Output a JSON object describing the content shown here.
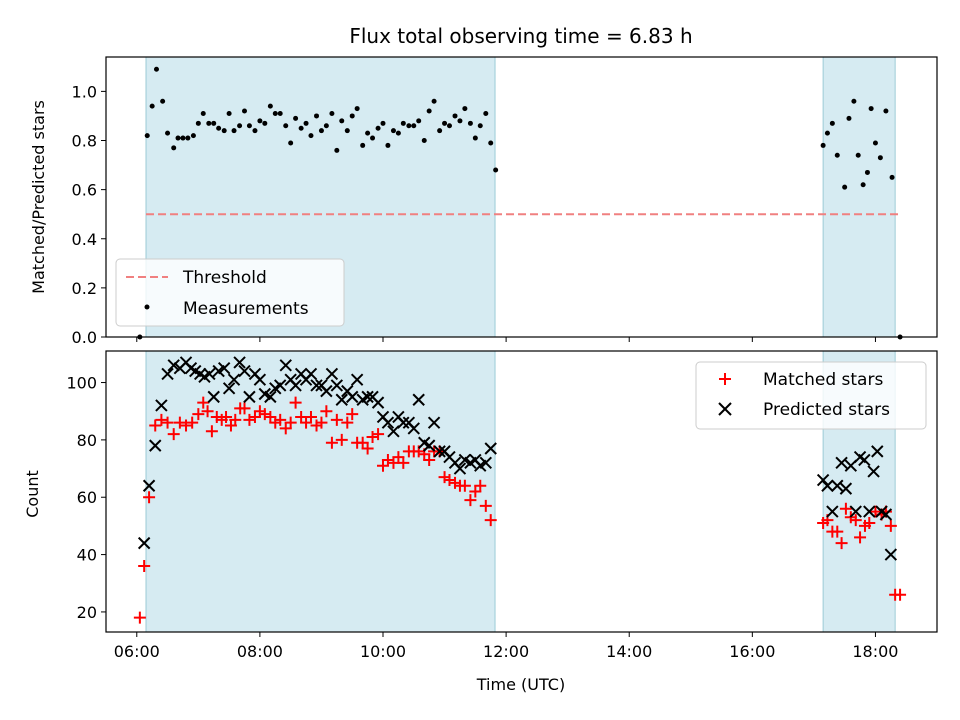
{
  "chart_data": [
    {
      "type": "scatter",
      "title": "Flux total observing time = 6.83 h",
      "ylabel": "Matched/Predicted stars",
      "ylim": [
        0,
        1.14
      ],
      "yticks": [
        "0.0",
        "0.2",
        "0.4",
        "0.6",
        "0.8",
        "1.0"
      ],
      "xlim": [
        5.5,
        19.0
      ],
      "x_tick_hours": [
        6,
        8,
        10,
        12,
        14,
        16,
        18
      ],
      "grid": false,
      "shaded_intervals": [
        [
          6.15,
          11.82
        ],
        [
          17.15,
          18.32
        ]
      ],
      "threshold": {
        "name": "Threshold",
        "value": 0.5,
        "x_range": [
          6.15,
          18.4
        ],
        "color": "#f08080"
      },
      "series": [
        {
          "name": "Measurements",
          "color": "#000000",
          "points": [
            [
              6.05,
              0.0
            ],
            [
              6.17,
              0.82
            ],
            [
              6.25,
              0.94
            ],
            [
              6.32,
              1.09
            ],
            [
              6.42,
              0.96
            ],
            [
              6.5,
              0.83
            ],
            [
              6.6,
              0.77
            ],
            [
              6.67,
              0.81
            ],
            [
              6.75,
              0.81
            ],
            [
              6.83,
              0.81
            ],
            [
              6.92,
              0.82
            ],
            [
              7.0,
              0.87
            ],
            [
              7.08,
              0.91
            ],
            [
              7.17,
              0.87
            ],
            [
              7.25,
              0.87
            ],
            [
              7.33,
              0.85
            ],
            [
              7.42,
              0.84
            ],
            [
              7.5,
              0.91
            ],
            [
              7.58,
              0.84
            ],
            [
              7.67,
              0.86
            ],
            [
              7.75,
              0.92
            ],
            [
              7.83,
              0.86
            ],
            [
              7.92,
              0.84
            ],
            [
              8.0,
              0.88
            ],
            [
              8.08,
              0.87
            ],
            [
              8.17,
              0.94
            ],
            [
              8.25,
              0.91
            ],
            [
              8.33,
              0.91
            ],
            [
              8.42,
              0.86
            ],
            [
              8.5,
              0.79
            ],
            [
              8.58,
              0.89
            ],
            [
              8.67,
              0.85
            ],
            [
              8.75,
              0.87
            ],
            [
              8.83,
              0.82
            ],
            [
              8.92,
              0.9
            ],
            [
              9.0,
              0.84
            ],
            [
              9.08,
              0.86
            ],
            [
              9.17,
              0.91
            ],
            [
              9.25,
              0.76
            ],
            [
              9.33,
              0.88
            ],
            [
              9.42,
              0.84
            ],
            [
              9.5,
              0.9
            ],
            [
              9.58,
              0.93
            ],
            [
              9.67,
              0.78
            ],
            [
              9.75,
              0.83
            ],
            [
              9.83,
              0.81
            ],
            [
              9.92,
              0.85
            ],
            [
              10.0,
              0.87
            ],
            [
              10.08,
              0.78
            ],
            [
              10.17,
              0.84
            ],
            [
              10.25,
              0.83
            ],
            [
              10.33,
              0.87
            ],
            [
              10.42,
              0.86
            ],
            [
              10.5,
              0.86
            ],
            [
              10.58,
              0.88
            ],
            [
              10.67,
              0.8
            ],
            [
              10.75,
              0.92
            ],
            [
              10.83,
              0.96
            ],
            [
              10.92,
              0.84
            ],
            [
              11.0,
              0.87
            ],
            [
              11.08,
              0.86
            ],
            [
              11.17,
              0.9
            ],
            [
              11.25,
              0.88
            ],
            [
              11.33,
              0.93
            ],
            [
              11.42,
              0.87
            ],
            [
              11.5,
              0.81
            ],
            [
              11.58,
              0.86
            ],
            [
              11.67,
              0.91
            ],
            [
              11.75,
              0.79
            ],
            [
              11.83,
              0.68
            ],
            [
              17.15,
              0.78
            ],
            [
              17.22,
              0.83
            ],
            [
              17.3,
              0.87
            ],
            [
              17.38,
              0.74
            ],
            [
              17.5,
              0.61
            ],
            [
              17.57,
              0.89
            ],
            [
              17.65,
              0.96
            ],
            [
              17.72,
              0.74
            ],
            [
              17.8,
              0.62
            ],
            [
              17.87,
              0.67
            ],
            [
              17.93,
              0.93
            ],
            [
              18.0,
              0.79
            ],
            [
              18.08,
              0.73
            ],
            [
              18.17,
              0.92
            ],
            [
              18.27,
              0.65
            ],
            [
              18.4,
              0.0
            ]
          ]
        }
      ],
      "legend": {
        "position": "lower-left",
        "entries": [
          "Threshold",
          "Measurements"
        ]
      }
    },
    {
      "type": "scatter",
      "xlabel": "Time (UTC)",
      "ylabel": "Count",
      "ylim": [
        13,
        111
      ],
      "yticks": [
        "20",
        "40",
        "60",
        "80",
        "100"
      ],
      "xlim": [
        5.5,
        19.0
      ],
      "x_tick_labels": [
        "06:00",
        "08:00",
        "10:00",
        "12:00",
        "14:00",
        "16:00",
        "18:00"
      ],
      "x_tick_hours": [
        6,
        8,
        10,
        12,
        14,
        16,
        18
      ],
      "grid": false,
      "shaded_intervals": [
        [
          6.15,
          11.82
        ],
        [
          17.15,
          18.32
        ]
      ],
      "series": [
        {
          "name": "Matched stars",
          "marker": "+",
          "color": "#ff0000",
          "points": [
            [
              6.05,
              18
            ],
            [
              6.12,
              36
            ],
            [
              6.2,
              60
            ],
            [
              6.3,
              85
            ],
            [
              6.4,
              87
            ],
            [
              6.5,
              86
            ],
            [
              6.6,
              82
            ],
            [
              6.7,
              86
            ],
            [
              6.8,
              85
            ],
            [
              6.9,
              86
            ],
            [
              7.0,
              89
            ],
            [
              7.08,
              93
            ],
            [
              7.15,
              90
            ],
            [
              7.22,
              83
            ],
            [
              7.3,
              88
            ],
            [
              7.38,
              87
            ],
            [
              7.45,
              88
            ],
            [
              7.53,
              85
            ],
            [
              7.6,
              87
            ],
            [
              7.68,
              91
            ],
            [
              7.75,
              91
            ],
            [
              7.83,
              87
            ],
            [
              7.92,
              88
            ],
            [
              8.0,
              90
            ],
            [
              8.08,
              89
            ],
            [
              8.17,
              88
            ],
            [
              8.25,
              86
            ],
            [
              8.33,
              87
            ],
            [
              8.42,
              84
            ],
            [
              8.5,
              86
            ],
            [
              8.58,
              93
            ],
            [
              8.67,
              88
            ],
            [
              8.75,
              86
            ],
            [
              8.83,
              88
            ],
            [
              8.92,
              85
            ],
            [
              9.0,
              86
            ],
            [
              9.08,
              90
            ],
            [
              9.17,
              79
            ],
            [
              9.25,
              87
            ],
            [
              9.33,
              80
            ],
            [
              9.42,
              86
            ],
            [
              9.5,
              89
            ],
            [
              9.58,
              79
            ],
            [
              9.67,
              79
            ],
            [
              9.75,
              77
            ],
            [
              9.83,
              81
            ],
            [
              9.92,
              82
            ],
            [
              10.0,
              71
            ],
            [
              10.08,
              73
            ],
            [
              10.17,
              72
            ],
            [
              10.25,
              74
            ],
            [
              10.33,
              72
            ],
            [
              10.42,
              76
            ],
            [
              10.5,
              76
            ],
            [
              10.58,
              76
            ],
            [
              10.67,
              75
            ],
            [
              10.75,
              73
            ],
            [
              10.83,
              76
            ],
            [
              10.92,
              76
            ],
            [
              11.0,
              67
            ],
            [
              11.08,
              66
            ],
            [
              11.17,
              65
            ],
            [
              11.25,
              64
            ],
            [
              11.33,
              64
            ],
            [
              11.42,
              59
            ],
            [
              11.5,
              62
            ],
            [
              11.58,
              64
            ],
            [
              11.67,
              57
            ],
            [
              11.75,
              52
            ],
            [
              17.15,
              51
            ],
            [
              17.22,
              52
            ],
            [
              17.3,
              48
            ],
            [
              17.38,
              48
            ],
            [
              17.45,
              44
            ],
            [
              17.52,
              56
            ],
            [
              17.6,
              53
            ],
            [
              17.68,
              52
            ],
            [
              17.75,
              46
            ],
            [
              17.83,
              50
            ],
            [
              17.9,
              51
            ],
            [
              18.0,
              55
            ],
            [
              18.1,
              54
            ],
            [
              18.17,
              55
            ],
            [
              18.25,
              50
            ],
            [
              18.32,
              26
            ],
            [
              18.4,
              26
            ]
          ]
        },
        {
          "name": "Predicted stars",
          "marker": "x",
          "color": "#000000",
          "points": [
            [
              6.12,
              44
            ],
            [
              6.2,
              64
            ],
            [
              6.3,
              78
            ],
            [
              6.4,
              92
            ],
            [
              6.5,
              103
            ],
            [
              6.6,
              106
            ],
            [
              6.7,
              105
            ],
            [
              6.8,
              107
            ],
            [
              6.88,
              105
            ],
            [
              6.95,
              104
            ],
            [
              7.03,
              103
            ],
            [
              7.1,
              102
            ],
            [
              7.18,
              103
            ],
            [
              7.25,
              95
            ],
            [
              7.33,
              104
            ],
            [
              7.42,
              105
            ],
            [
              7.5,
              98
            ],
            [
              7.58,
              101
            ],
            [
              7.67,
              107
            ],
            [
              7.75,
              104
            ],
            [
              7.83,
              95
            ],
            [
              7.92,
              103
            ],
            [
              8.0,
              101
            ],
            [
              8.08,
              96
            ],
            [
              8.17,
              95
            ],
            [
              8.25,
              98
            ],
            [
              8.33,
              99
            ],
            [
              8.42,
              106
            ],
            [
              8.5,
              101
            ],
            [
              8.58,
              99
            ],
            [
              8.67,
              103
            ],
            [
              8.75,
              101
            ],
            [
              8.83,
              103
            ],
            [
              8.92,
              99
            ],
            [
              9.0,
              99
            ],
            [
              9.08,
              97
            ],
            [
              9.17,
              103
            ],
            [
              9.25,
              99
            ],
            [
              9.33,
              94
            ],
            [
              9.42,
              97
            ],
            [
              9.5,
              95
            ],
            [
              9.58,
              101
            ],
            [
              9.67,
              94
            ],
            [
              9.75,
              95
            ],
            [
              9.83,
              95
            ],
            [
              9.92,
              93
            ],
            [
              10.0,
              88
            ],
            [
              10.08,
              86
            ],
            [
              10.17,
              83
            ],
            [
              10.25,
              88
            ],
            [
              10.33,
              86
            ],
            [
              10.42,
              86
            ],
            [
              10.5,
              84
            ],
            [
              10.58,
              94
            ],
            [
              10.67,
              79
            ],
            [
              10.75,
              78
            ],
            [
              10.83,
              86
            ],
            [
              10.92,
              76
            ],
            [
              11.0,
              76
            ],
            [
              11.08,
              74
            ],
            [
              11.17,
              72
            ],
            [
              11.25,
              70
            ],
            [
              11.33,
              73
            ],
            [
              11.42,
              72
            ],
            [
              11.5,
              73
            ],
            [
              11.58,
              71
            ],
            [
              11.67,
              72
            ],
            [
              11.75,
              77
            ],
            [
              17.15,
              66
            ],
            [
              17.22,
              64
            ],
            [
              17.3,
              55
            ],
            [
              17.38,
              64
            ],
            [
              17.45,
              72
            ],
            [
              17.52,
              63
            ],
            [
              17.6,
              71
            ],
            [
              17.68,
              55
            ],
            [
              17.75,
              74
            ],
            [
              17.82,
              73
            ],
            [
              17.9,
              55
            ],
            [
              17.97,
              69
            ],
            [
              18.03,
              76
            ],
            [
              18.1,
              55
            ],
            [
              18.17,
              54
            ],
            [
              18.25,
              40
            ]
          ]
        }
      ],
      "legend": {
        "position": "upper-right",
        "entries": [
          "Matched stars",
          "Predicted stars"
        ]
      }
    }
  ]
}
